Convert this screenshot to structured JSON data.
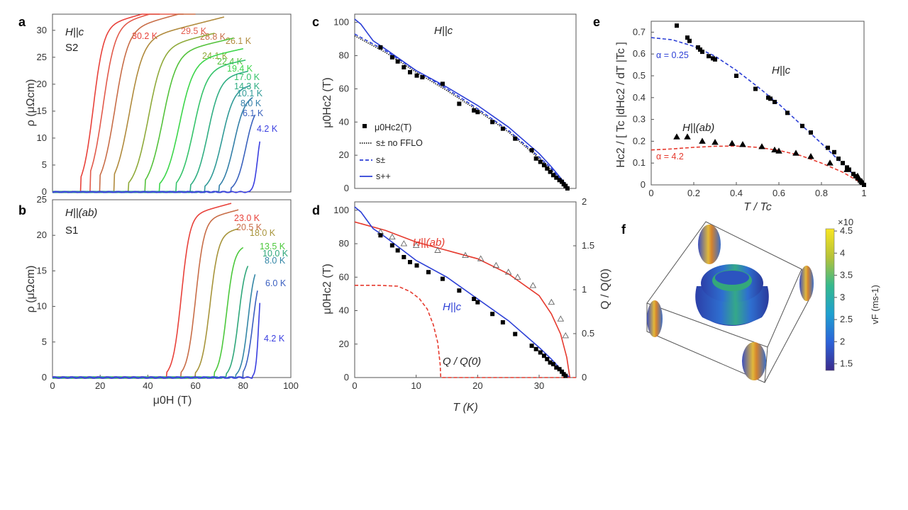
{
  "panels": {
    "a": {
      "letter": "a",
      "annot1": "H||c",
      "annot2": "S2",
      "ylabel": "ρ (μΩcm)",
      "xlabel": "",
      "yticks": [
        "0",
        "5",
        "10",
        "15",
        "20",
        "25",
        "30"
      ],
      "xticks": []
    },
    "b": {
      "letter": "b",
      "annot1": "H||(ab)",
      "annot2": "S1",
      "ylabel": "ρ (μΩcm)",
      "xlabel": "μ0H (T)",
      "yticks": [
        "0",
        "5",
        "10",
        "15",
        "20",
        "25"
      ],
      "xticks": [
        "0",
        "20",
        "40",
        "60",
        "80",
        "100"
      ]
    },
    "c": {
      "letter": "c",
      "annot1": "H||c",
      "ylabel": "μ0Hc2 (T)",
      "yticks": [
        "0",
        "20",
        "40",
        "60",
        "80",
        "100"
      ],
      "legend": [
        "μ0Hc2(T)",
        "s± no FFLO",
        "s±",
        "s++"
      ]
    },
    "d": {
      "letter": "d",
      "annot_ab": "H||(ab)",
      "annot_c": "H||c",
      "annot_q": "Q / Q(0)",
      "ylabel": "μ0Hc2 (T)",
      "y2label": "Q / Q(0)",
      "xlabel": "T (K)",
      "yticks": [
        "0",
        "20",
        "40",
        "60",
        "80",
        "100"
      ],
      "y2ticks": [
        "0",
        "0.5",
        "1",
        "1.5",
        "2"
      ],
      "xticks": [
        "0",
        "10",
        "20",
        "30"
      ]
    },
    "e": {
      "letter": "e",
      "ylabel": "Hc2 / [ Tc |dHc2 / dT |Tc ]",
      "xlabel": "T / Tc",
      "annot_c": "H||c",
      "annot_ab": "H||(ab)",
      "alpha1": "α = 0.25",
      "alpha2": "α = 4.2",
      "yticks": [
        "0",
        "0.1",
        "0.2",
        "0.3",
        "0.4",
        "0.5",
        "0.6",
        "0.7"
      ],
      "xticks": [
        "0",
        "0.2",
        "0.4",
        "0.6",
        "0.8",
        "1"
      ]
    },
    "f": {
      "letter": "f",
      "cbar_label": "vF (ms-1)",
      "cbar_exp": "×10",
      "cbar_ticks": [
        "4.5",
        "4",
        "3.5",
        "3",
        "2.5",
        "2",
        "1.5"
      ]
    }
  },
  "chart_data": [
    {
      "panel": "a",
      "type": "line",
      "xlabel": "",
      "ylabel": "ρ (μΩcm)",
      "xlim": [
        0,
        100
      ],
      "ylim": [
        0,
        33
      ],
      "series": [
        {
          "name": "30.2 K",
          "color": "#e8413a",
          "onset": 13,
          "mid": 17,
          "width": 2.2,
          "ymax": 30.5,
          "xend": 45
        },
        {
          "name": "29.5 K",
          "color": "#e25a4b",
          "onset": 17,
          "mid": 21,
          "width": 2.6,
          "ymax": 30.6,
          "xend": 55
        },
        {
          "name": "28.8 K",
          "color": "#c86d47",
          "onset": 21,
          "mid": 26,
          "width": 2.8,
          "ymax": 29.8,
          "xend": 60
        },
        {
          "name": "26.1 K",
          "color": "#b08a3c",
          "onset": 27,
          "mid": 32,
          "width": 3.0,
          "ymax": 28.0,
          "xend": 72
        },
        {
          "name": "24.1 K",
          "color": "#8faa3a",
          "onset": 33,
          "mid": 40,
          "width": 3.0,
          "ymax": 26.5,
          "xend": 68
        },
        {
          "name": "22.4 K",
          "color": "#54c23b",
          "onset": 40,
          "mid": 46,
          "width": 3.0,
          "ymax": 25.5,
          "xend": 76
        },
        {
          "name": "19.4 K",
          "color": "#3cd64a",
          "onset": 46,
          "mid": 53,
          "width": 3.0,
          "ymax": 24.0,
          "xend": 80
        },
        {
          "name": "17.0 K",
          "color": "#34c36a",
          "onset": 53,
          "mid": 59,
          "width": 2.8,
          "ymax": 22.5,
          "xend": 81
        },
        {
          "name": "14.3 K",
          "color": "#2fae82",
          "onset": 59,
          "mid": 65,
          "width": 2.6,
          "ymax": 21.0,
          "xend": 82
        },
        {
          "name": "10.1 K",
          "color": "#2f9a97",
          "onset": 65,
          "mid": 71,
          "width": 2.5,
          "ymax": 19.0,
          "xend": 83
        },
        {
          "name": "8.0 K",
          "color": "#337fa8",
          "onset": 71,
          "mid": 76,
          "width": 2.3,
          "ymax": 17.5,
          "xend": 84
        },
        {
          "name": "6.1 K",
          "color": "#3a62bd",
          "onset": 76,
          "mid": 81,
          "width": 2.0,
          "ymax": 16.0,
          "xend": 85
        },
        {
          "name": "4.2 K",
          "color": "#3a3fe0",
          "onset": 84,
          "mid": 86,
          "width": 0.8,
          "ymax": 12.0,
          "xend": 87
        }
      ]
    },
    {
      "panel": "b",
      "type": "line",
      "xlabel": "μ0H (T)",
      "ylabel": "ρ (μΩcm)",
      "xlim": [
        0,
        100
      ],
      "ylim": [
        0,
        25
      ],
      "series": [
        {
          "name": "23.0 K",
          "color": "#e8413a",
          "onset": 49,
          "mid": 54,
          "width": 1.8,
          "ymax": 22.6,
          "xend": 75
        },
        {
          "name": "20.5 K",
          "color": "#c86d47",
          "onset": 55,
          "mid": 60,
          "width": 1.8,
          "ymax": 22.0,
          "xend": 78
        },
        {
          "name": "18.0 K",
          "color": "#a7943a",
          "onset": 61,
          "mid": 66,
          "width": 1.8,
          "ymax": 20.0,
          "xend": 78
        },
        {
          "name": "13.5 K",
          "color": "#4cc83c",
          "onset": 69,
          "mid": 73,
          "width": 1.6,
          "ymax": 18.0,
          "xend": 80
        },
        {
          "name": "10.0 K",
          "color": "#2fa77a",
          "onset": 74,
          "mid": 78,
          "width": 1.5,
          "ymax": 16.5,
          "xend": 82
        },
        {
          "name": "8.0 K",
          "color": "#3386a6",
          "onset": 78,
          "mid": 82,
          "width": 1.4,
          "ymax": 16.0,
          "xend": 85
        },
        {
          "name": "6.0 K",
          "color": "#3a5fc0",
          "onset": 81,
          "mid": 84,
          "width": 1.4,
          "ymax": 15.0,
          "xend": 86
        },
        {
          "name": "4.2 K",
          "color": "#3a3fe0",
          "onset": 85,
          "mid": 86.5,
          "width": 0.6,
          "ymax": 15.0,
          "xend": 87
        }
      ]
    },
    {
      "panel": "c",
      "type": "line",
      "xlabel": "",
      "ylabel": "μ0Hc2 (T)",
      "xlim": [
        0,
        36
      ],
      "ylim": [
        0,
        105
      ],
      "points": {
        "name": "μ0Hc2(T)",
        "x": [
          4.2,
          6.1,
          7.0,
          8.0,
          9.0,
          10.1,
          11.0,
          14.3,
          17.0,
          19.4,
          20.0,
          22.4,
          24.1,
          26.1,
          28.8,
          29.5,
          30.2,
          30.8,
          31.3,
          31.8,
          32.3,
          32.8,
          33.3,
          33.7,
          34.0,
          34.3,
          34.6
        ],
        "y": [
          85,
          79,
          76.5,
          73,
          70,
          68,
          67,
          63,
          51,
          47,
          46,
          40,
          36,
          30,
          23,
          18,
          16,
          14,
          12,
          10,
          8,
          6.5,
          5,
          4,
          2.5,
          1.5,
          0
        ]
      },
      "series": [
        {
          "name": "s± no FFLO",
          "style": "dotted",
          "color": "#222222",
          "x": [
            0,
            5,
            10,
            15,
            20,
            25,
            30,
            32,
            34,
            34.8
          ],
          "y": [
            92,
            82,
            70,
            59,
            47,
            34,
            18,
            11,
            3,
            0
          ]
        },
        {
          "name": "s±",
          "style": "dashed",
          "color": "#2c3fd6",
          "x": [
            0,
            5,
            10,
            15,
            20,
            25,
            30,
            32,
            34,
            34.8
          ],
          "y": [
            93,
            83,
            71,
            60,
            48,
            35,
            19,
            12,
            3,
            0
          ]
        },
        {
          "name": "s++",
          "style": "solid",
          "color": "#2c3fd6",
          "x": [
            0,
            1,
            2,
            3,
            5,
            10,
            15,
            20,
            25,
            30,
            32,
            34,
            34.8
          ],
          "y": [
            102,
            99,
            94,
            89,
            84,
            71,
            61,
            50,
            37,
            21,
            13,
            4,
            0
          ]
        }
      ]
    },
    {
      "panel": "d",
      "type": "line",
      "xlabel": "T (K)",
      "ylabel": "μ0Hc2 (T)",
      "y2label": "Q / Q(0)",
      "xlim": [
        0,
        36
      ],
      "ylim": [
        0,
        105
      ],
      "y2lim": [
        0,
        2
      ],
      "points_c": {
        "name": "H||c",
        "x": [
          4.2,
          6.1,
          7.0,
          8.0,
          9.0,
          10.1,
          12.0,
          14.3,
          17.0,
          19.4,
          20.0,
          22.4,
          24.1,
          26.1,
          28.8,
          29.5,
          30.2,
          30.8,
          31.3,
          31.8,
          32.3,
          32.8,
          33.3,
          33.7,
          34.0,
          34.3
        ],
        "y": [
          85,
          79,
          76,
          72,
          69,
          67,
          63,
          59,
          52,
          47,
          45,
          38,
          33,
          26,
          19,
          17,
          15,
          13,
          11,
          9,
          8,
          6,
          5,
          3.5,
          2,
          1
        ]
      },
      "points_ab": {
        "name": "H||(ab)",
        "x": [
          4.2,
          6.1,
          8.0,
          10.0,
          13.5,
          18.0,
          20.5,
          23.0,
          25.0,
          26.5,
          29.0,
          32.0,
          33.5,
          34.3
        ],
        "y": [
          87,
          84,
          80,
          79,
          76,
          73,
          71,
          67,
          63,
          60,
          55,
          45,
          35,
          25
        ]
      },
      "series": [
        {
          "name": "H||(ab)",
          "color": "#e63a2e",
          "style": "solid",
          "x": [
            0,
            5,
            10,
            15,
            20,
            25,
            30,
            32,
            33.5,
            34.5,
            35
          ],
          "y": [
            93,
            88,
            81,
            76,
            71,
            62,
            49,
            38,
            26,
            12,
            0
          ]
        },
        {
          "name": "H||c",
          "color": "#2c3fd6",
          "style": "solid",
          "x": [
            0,
            1,
            2,
            3,
            5,
            10,
            15,
            20,
            25,
            30,
            32,
            34,
            35
          ],
          "y": [
            102,
            99,
            94,
            89,
            84,
            70,
            60,
            47,
            34,
            18,
            11,
            3,
            0
          ]
        },
        {
          "name": "Q / Q(0)",
          "color": "#e63a2e",
          "style": "dashed",
          "axis": "y2",
          "x": [
            0,
            4,
            7,
            9,
            10.5,
            11.8,
            12.8,
            13.5,
            13.9,
            14.0,
            20,
            30,
            36
          ],
          "y": [
            1.05,
            1.05,
            1.04,
            0.98,
            0.9,
            0.78,
            0.6,
            0.4,
            0.15,
            0,
            0,
            0,
            0
          ]
        }
      ]
    },
    {
      "panel": "e",
      "type": "line",
      "xlabel": "T / Tc",
      "ylabel": "Hc2 / [ Tc |dHc2 / dT |Tc ]",
      "xlim": [
        0,
        1
      ],
      "ylim": [
        0,
        0.75
      ],
      "points_c": {
        "name": "H||c",
        "x": [
          0.12,
          0.17,
          0.18,
          0.22,
          0.23,
          0.24,
          0.27,
          0.29,
          0.3,
          0.4,
          0.49,
          0.55,
          0.56,
          0.58,
          0.64,
          0.71,
          0.75,
          0.83,
          0.86,
          0.88,
          0.9,
          0.92,
          0.93,
          0.95,
          0.96,
          0.97,
          0.98,
          0.99,
          1.0
        ],
        "y": [
          0.73,
          0.675,
          0.66,
          0.63,
          0.62,
          0.61,
          0.59,
          0.58,
          0.575,
          0.5,
          0.44,
          0.4,
          0.395,
          0.38,
          0.33,
          0.27,
          0.24,
          0.17,
          0.15,
          0.12,
          0.1,
          0.08,
          0.07,
          0.05,
          0.04,
          0.03,
          0.02,
          0.01,
          0.0
        ]
      },
      "points_ab": {
        "name": "H||(ab)",
        "x": [
          0.12,
          0.17,
          0.24,
          0.3,
          0.38,
          0.43,
          0.52,
          0.58,
          0.6,
          0.68,
          0.75,
          0.84,
          0.92,
          0.97,
          0.99
        ],
        "y": [
          0.22,
          0.22,
          0.2,
          0.195,
          0.19,
          0.185,
          0.175,
          0.16,
          0.155,
          0.145,
          0.13,
          0.1,
          0.07,
          0.04,
          0.015
        ]
      },
      "series": [
        {
          "name": "α = 0.25",
          "color": "#2c3fd6",
          "style": "dashed",
          "x": [
            0,
            0.1,
            0.2,
            0.3,
            0.4,
            0.5,
            0.6,
            0.7,
            0.8,
            0.9,
            0.95,
            1.0
          ],
          "y": [
            0.675,
            0.665,
            0.635,
            0.59,
            0.525,
            0.45,
            0.37,
            0.28,
            0.19,
            0.095,
            0.048,
            0.0
          ]
        },
        {
          "name": "α = 4.2",
          "color": "#e63a2e",
          "style": "dashed",
          "x": [
            0,
            0.1,
            0.2,
            0.3,
            0.4,
            0.5,
            0.6,
            0.7,
            0.8,
            0.9,
            0.95,
            1.0
          ],
          "y": [
            0.16,
            0.165,
            0.172,
            0.177,
            0.178,
            0.172,
            0.158,
            0.135,
            0.1,
            0.058,
            0.03,
            0.0
          ]
        }
      ]
    }
  ]
}
